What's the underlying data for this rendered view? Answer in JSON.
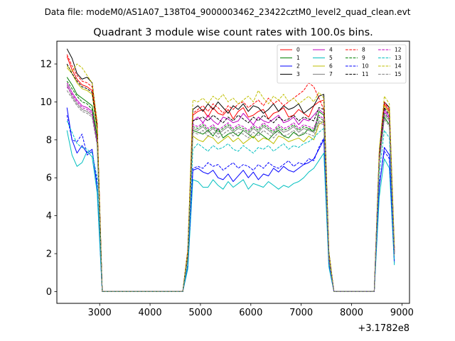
{
  "suptitle": "Data file: modeM0/AS1A07_138T04_9000003462_23422cztM0_level2_quad_clean.evt",
  "chart_data": {
    "type": "line",
    "title": "Quadrant 3 module wise count rates with 100.0s bins.",
    "xlabel": "",
    "ylabel": "",
    "x_offset_label": "+3.1782e8",
    "xlim": [
      2150,
      9150
    ],
    "ylim": [
      -0.62,
      13.2
    ],
    "xticks": [
      3000,
      4000,
      5000,
      6000,
      7000,
      8000,
      9000
    ],
    "yticks": [
      0,
      2,
      4,
      6,
      8,
      10,
      12
    ],
    "grid": false,
    "legend_position": "top-right",
    "legend_columns": 4,
    "x": [
      2350,
      2450,
      2550,
      2650,
      2750,
      2850,
      2950,
      3050,
      3150,
      3250,
      3350,
      3450,
      3550,
      3650,
      3750,
      3850,
      3950,
      4050,
      4150,
      4250,
      4350,
      4450,
      4550,
      4650,
      4750,
      4850,
      4950,
      5050,
      5150,
      5250,
      5350,
      5450,
      5550,
      5650,
      5750,
      5850,
      5950,
      6050,
      6150,
      6250,
      6350,
      6450,
      6550,
      6650,
      6750,
      6850,
      6950,
      7050,
      7150,
      7250,
      7350,
      7450,
      7550,
      7650,
      7750,
      7850,
      7950,
      8050,
      8150,
      8250,
      8350,
      8450,
      8550,
      8650,
      8750,
      8850
    ],
    "series": [
      {
        "name": "0",
        "color": "#ff0000",
        "dash": "solid",
        "values": [
          12.4,
          11.7,
          11.2,
          10.9,
          10.8,
          10.6,
          8.8,
          0,
          0,
          0,
          0,
          0,
          0,
          0,
          0,
          0,
          0,
          0,
          0,
          0,
          0,
          0,
          0,
          0,
          2.1,
          9.3,
          9.5,
          9.6,
          9.2,
          9.7,
          9.4,
          9.3,
          9.6,
          9.1,
          9.5,
          9.7,
          9.2,
          9.3,
          9.5,
          9.6,
          9.1,
          9.4,
          9.5,
          9.7,
          9.2,
          9.3,
          9.6,
          9.4,
          9.2,
          9.8,
          10.0,
          10.1,
          2.0,
          0,
          0,
          0,
          0,
          0,
          0,
          0,
          0,
          0,
          7.2,
          9.9,
          9.5,
          2.2
        ]
      },
      {
        "name": "1",
        "color": "#008000",
        "dash": "solid",
        "values": [
          11.3,
          10.9,
          10.4,
          10.2,
          10.0,
          9.8,
          8.2,
          0,
          0,
          0,
          0,
          0,
          0,
          0,
          0,
          0,
          0,
          0,
          0,
          0,
          0,
          0,
          0,
          0,
          1.9,
          8.5,
          8.4,
          8.3,
          8.5,
          8.2,
          8.6,
          8.1,
          8.3,
          8.4,
          8.2,
          8.5,
          8.3,
          8.1,
          8.4,
          8.2,
          8.0,
          8.3,
          8.5,
          8.2,
          8.1,
          8.4,
          8.2,
          8.3,
          8.6,
          8.4,
          9.5,
          9.3,
          1.8,
          0,
          0,
          0,
          0,
          0,
          0,
          0,
          0,
          0,
          6.8,
          9.2,
          8.8,
          2.0
        ]
      },
      {
        "name": "2",
        "color": "#0000ff",
        "dash": "solid",
        "values": [
          9.7,
          8.0,
          7.3,
          7.7,
          7.3,
          7.5,
          5.5,
          0,
          0,
          0,
          0,
          0,
          0,
          0,
          0,
          0,
          0,
          0,
          0,
          0,
          0,
          0,
          0,
          0,
          1.3,
          6.4,
          6.5,
          6.3,
          6.2,
          6.4,
          6.0,
          5.9,
          6.2,
          5.8,
          6.1,
          6.4,
          6.0,
          6.3,
          5.9,
          6.2,
          6.1,
          6.5,
          6.3,
          6.6,
          6.4,
          6.3,
          6.5,
          6.7,
          6.8,
          7.0,
          7.5,
          8.0,
          1.4,
          0,
          0,
          0,
          0,
          0,
          0,
          0,
          0,
          0,
          5.5,
          7.6,
          7.2,
          1.5
        ]
      },
      {
        "name": "3",
        "color": "#000000",
        "dash": "solid",
        "values": [
          12.8,
          12.3,
          11.5,
          11.2,
          11.3,
          11.0,
          8.9,
          0,
          0,
          0,
          0,
          0,
          0,
          0,
          0,
          0,
          0,
          0,
          0,
          0,
          0,
          0,
          0,
          0,
          2.2,
          9.6,
          9.8,
          9.5,
          9.9,
          9.6,
          10.0,
          9.7,
          9.4,
          9.8,
          9.6,
          9.9,
          9.5,
          9.8,
          9.7,
          9.4,
          9.6,
          9.9,
          9.5,
          9.8,
          9.6,
          9.7,
          9.9,
          9.4,
          9.6,
          9.8,
          10.3,
          10.4,
          2.1,
          0,
          0,
          0,
          0,
          0,
          0,
          0,
          0,
          0,
          7.4,
          10.0,
          9.7,
          2.3
        ]
      },
      {
        "name": "4",
        "color": "#bf00bf",
        "dash": "solid",
        "values": [
          11.0,
          10.5,
          10.1,
          9.8,
          9.7,
          9.5,
          8.0,
          0,
          0,
          0,
          0,
          0,
          0,
          0,
          0,
          0,
          0,
          0,
          0,
          0,
          0,
          0,
          0,
          0,
          1.9,
          9.0,
          9.2,
          8.9,
          9.3,
          9.0,
          8.8,
          9.2,
          9.1,
          8.9,
          9.0,
          9.4,
          9.1,
          8.8,
          9.2,
          9.0,
          8.9,
          9.1,
          9.3,
          8.9,
          9.0,
          9.2,
          8.8,
          9.1,
          9.0,
          9.3,
          9.6,
          9.4,
          1.9,
          0,
          0,
          0,
          0,
          0,
          0,
          0,
          0,
          0,
          7.0,
          9.6,
          9.2,
          2.1
        ]
      },
      {
        "name": "5",
        "color": "#00bfbf",
        "dash": "solid",
        "values": [
          8.5,
          7.2,
          6.6,
          6.8,
          7.4,
          7.1,
          5.2,
          0,
          0,
          0,
          0,
          0,
          0,
          0,
          0,
          0,
          0,
          0,
          0,
          0,
          0,
          0,
          0,
          0,
          1.2,
          5.9,
          5.8,
          5.5,
          5.5,
          5.9,
          5.6,
          5.4,
          5.8,
          5.5,
          5.7,
          5.9,
          5.4,
          5.7,
          5.6,
          5.5,
          5.8,
          5.6,
          5.4,
          5.6,
          5.5,
          5.7,
          5.8,
          6.0,
          6.3,
          6.5,
          6.9,
          7.3,
          1.3,
          0,
          0,
          0,
          0,
          0,
          0,
          0,
          0,
          0,
          5.0,
          7.0,
          6.5,
          1.4
        ]
      },
      {
        "name": "6",
        "color": "#bfbf00",
        "dash": "solid",
        "values": [
          11.8,
          11.5,
          11.0,
          10.7,
          10.6,
          10.4,
          8.5,
          0,
          0,
          0,
          0,
          0,
          0,
          0,
          0,
          0,
          0,
          0,
          0,
          0,
          0,
          0,
          0,
          0,
          2.0,
          8.2,
          8.0,
          7.9,
          8.2,
          8.1,
          7.8,
          8.0,
          8.2,
          7.9,
          8.1,
          7.8,
          8.0,
          8.2,
          7.9,
          8.1,
          8.0,
          7.8,
          8.2,
          8.1,
          7.9,
          8.0,
          8.1,
          7.9,
          8.2,
          8.0,
          8.8,
          9.0,
          1.9,
          0,
          0,
          0,
          0,
          0,
          0,
          0,
          0,
          0,
          7.1,
          9.8,
          9.4,
          2.2
        ]
      },
      {
        "name": "7",
        "color": "#808080",
        "dash": "solid",
        "values": [
          10.9,
          10.3,
          9.9,
          9.6,
          9.5,
          9.3,
          7.8,
          0,
          0,
          0,
          0,
          0,
          0,
          0,
          0,
          0,
          0,
          0,
          0,
          0,
          0,
          0,
          0,
          0,
          1.8,
          8.6,
          8.5,
          8.7,
          8.4,
          8.6,
          8.3,
          8.5,
          8.7,
          8.4,
          8.6,
          8.5,
          8.3,
          8.6,
          8.4,
          8.7,
          8.5,
          8.3,
          8.6,
          8.4,
          8.5,
          8.7,
          8.4,
          8.6,
          8.5,
          8.4,
          9.0,
          8.9,
          1.8,
          0,
          0,
          0,
          0,
          0,
          0,
          0,
          0,
          0,
          6.9,
          9.3,
          9.0,
          2.0
        ]
      },
      {
        "name": "8",
        "color": "#ff0000",
        "dash": "dashed",
        "values": [
          12.5,
          11.9,
          11.4,
          11.1,
          11.0,
          10.8,
          8.9,
          0,
          0,
          0,
          0,
          0,
          0,
          0,
          0,
          0,
          0,
          0,
          0,
          0,
          0,
          0,
          0,
          0,
          2.2,
          9.4,
          9.6,
          9.8,
          9.5,
          9.9,
          9.7,
          9.4,
          9.8,
          9.6,
          9.9,
          10.0,
          9.7,
          9.9,
          10.1,
          9.8,
          10.2,
          9.9,
          10.1,
          9.8,
          10.0,
          10.2,
          10.4,
          10.6,
          11.0,
          10.8,
          10.2,
          9.6,
          2.0,
          0,
          0,
          0,
          0,
          0,
          0,
          0,
          0,
          0,
          7.3,
          10.0,
          9.6,
          2.3
        ]
      },
      {
        "name": "9",
        "color": "#008000",
        "dash": "dashed",
        "values": [
          11.1,
          10.7,
          10.3,
          10.0,
          9.9,
          9.6,
          8.1,
          0,
          0,
          0,
          0,
          0,
          0,
          0,
          0,
          0,
          0,
          0,
          0,
          0,
          0,
          0,
          0,
          0,
          1.9,
          8.7,
          8.6,
          8.8,
          8.5,
          8.7,
          8.4,
          8.6,
          8.8,
          8.5,
          8.7,
          8.6,
          8.4,
          8.7,
          8.5,
          8.8,
          8.6,
          8.4,
          8.7,
          8.5,
          8.6,
          8.8,
          8.5,
          8.7,
          8.6,
          8.5,
          9.2,
          9.0,
          1.8,
          0,
          0,
          0,
          0,
          0,
          0,
          0,
          0,
          0,
          6.9,
          9.4,
          9.1,
          2.0
        ]
      },
      {
        "name": "10",
        "color": "#0000ff",
        "dash": "dashed",
        "values": [
          9.3,
          8.0,
          7.9,
          8.3,
          7.2,
          7.4,
          5.8,
          0,
          0,
          0,
          0,
          0,
          0,
          0,
          0,
          0,
          0,
          0,
          0,
          0,
          0,
          0,
          0,
          0,
          1.4,
          6.5,
          6.6,
          6.5,
          6.8,
          6.6,
          6.7,
          6.4,
          6.6,
          6.8,
          6.5,
          6.7,
          6.6,
          6.4,
          6.7,
          6.5,
          6.8,
          6.6,
          6.5,
          6.7,
          6.9,
          6.6,
          6.8,
          6.7,
          7.0,
          6.9,
          7.6,
          8.1,
          1.5,
          0,
          0,
          0,
          0,
          0,
          0,
          0,
          0,
          0,
          5.7,
          7.4,
          7.0,
          1.6
        ]
      },
      {
        "name": "11",
        "color": "#000000",
        "dash": "dashed",
        "values": [
          12.0,
          11.5,
          11.1,
          10.8,
          10.7,
          10.5,
          8.6,
          0,
          0,
          0,
          0,
          0,
          0,
          0,
          0,
          0,
          0,
          0,
          0,
          0,
          0,
          0,
          0,
          0,
          2.1,
          9.0,
          9.1,
          9.2,
          9.0,
          9.3,
          9.1,
          8.9,
          9.2,
          9.0,
          9.3,
          9.1,
          8.9,
          9.2,
          9.0,
          9.3,
          9.1,
          8.9,
          9.2,
          9.0,
          9.1,
          9.3,
          9.0,
          9.2,
          9.1,
          9.0,
          9.7,
          9.6,
          2.0,
          0,
          0,
          0,
          0,
          0,
          0,
          0,
          0,
          0,
          7.2,
          9.7,
          9.3,
          2.1
        ]
      },
      {
        "name": "12",
        "color": "#bf00bf",
        "dash": "dashed",
        "values": [
          10.8,
          10.4,
          10.0,
          9.7,
          9.6,
          9.4,
          7.9,
          0,
          0,
          0,
          0,
          0,
          0,
          0,
          0,
          0,
          0,
          0,
          0,
          0,
          0,
          0,
          0,
          0,
          1.8,
          8.8,
          8.7,
          8.9,
          8.6,
          8.8,
          8.5,
          8.7,
          8.9,
          8.6,
          8.8,
          8.7,
          8.5,
          8.8,
          8.6,
          8.9,
          8.7,
          8.5,
          8.8,
          8.6,
          8.7,
          8.9,
          8.6,
          8.8,
          8.7,
          8.6,
          9.3,
          9.1,
          1.8,
          0,
          0,
          0,
          0,
          0,
          0,
          0,
          0,
          0,
          7.0,
          9.5,
          9.1,
          2.0
        ]
      },
      {
        "name": "13",
        "color": "#00bfbf",
        "dash": "dashed",
        "values": [
          9.0,
          8.4,
          7.8,
          7.6,
          7.5,
          7.3,
          6.0,
          0,
          0,
          0,
          0,
          0,
          0,
          0,
          0,
          0,
          0,
          0,
          0,
          0,
          0,
          0,
          0,
          0,
          1.5,
          7.5,
          7.8,
          7.6,
          7.4,
          7.7,
          7.5,
          7.6,
          7.8,
          7.5,
          7.4,
          7.7,
          7.5,
          7.3,
          7.6,
          7.5,
          7.7,
          7.4,
          7.6,
          7.8,
          7.5,
          7.7,
          7.6,
          7.8,
          7.9,
          8.1,
          8.4,
          8.6,
          1.6,
          0,
          0,
          0,
          0,
          0,
          0,
          0,
          0,
          0,
          6.2,
          8.5,
          8.1,
          1.7
        ]
      },
      {
        "name": "14",
        "color": "#bfbf00",
        "dash": "dashed",
        "values": [
          11.9,
          11.6,
          12.0,
          11.8,
          11.4,
          11.0,
          8.9,
          0,
          0,
          0,
          0,
          0,
          0,
          0,
          0,
          0,
          0,
          0,
          0,
          0,
          0,
          0,
          0,
          0,
          2.2,
          10.1,
          10.0,
          10.2,
          9.9,
          10.3,
          10.1,
          10.4,
          10.0,
          10.2,
          9.9,
          10.1,
          10.3,
          10.0,
          10.6,
          10.2,
          9.9,
          10.3,
          10.1,
          10.4,
          10.0,
          10.2,
          9.9,
          10.1,
          10.3,
          10.0,
          10.5,
          10.2,
          2.1,
          0,
          0,
          0,
          0,
          0,
          0,
          0,
          0,
          0,
          7.5,
          10.3,
          9.9,
          2.4
        ]
      },
      {
        "name": "15",
        "color": "#808080",
        "dash": "dashed",
        "values": [
          10.6,
          10.2,
          9.8,
          9.5,
          9.4,
          9.2,
          7.7,
          0,
          0,
          0,
          0,
          0,
          0,
          0,
          0,
          0,
          0,
          0,
          0,
          0,
          0,
          0,
          0,
          0,
          1.8,
          8.4,
          8.3,
          8.5,
          8.2,
          8.4,
          8.1,
          8.3,
          8.5,
          8.2,
          8.4,
          8.3,
          8.1,
          8.4,
          8.2,
          8.5,
          8.3,
          8.1,
          8.4,
          8.2,
          8.3,
          8.5,
          8.2,
          8.4,
          8.3,
          8.2,
          8.9,
          8.8,
          1.7,
          0,
          0,
          0,
          0,
          0,
          0,
          0,
          0,
          0,
          6.8,
          9.1,
          8.7,
          1.9
        ]
      }
    ]
  }
}
